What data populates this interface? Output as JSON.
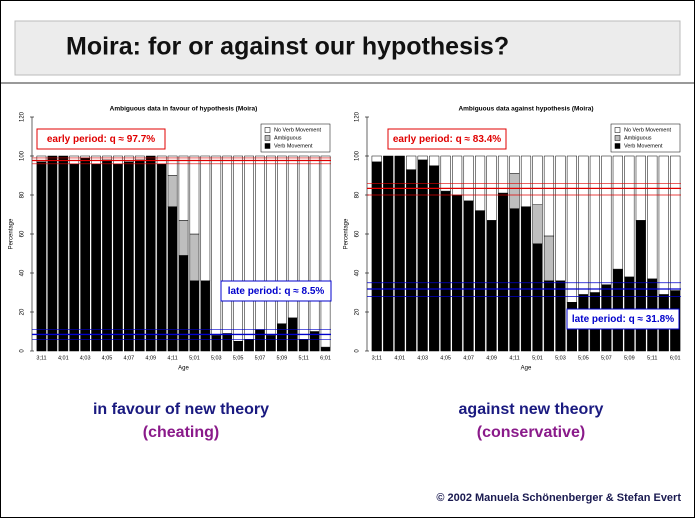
{
  "slide": {
    "title": "Moira: for or against our hypothesis?",
    "captions": [
      {
        "line1": "in favour of new theory",
        "line2": "(cheating)"
      },
      {
        "line1": "against new theory",
        "line2": "(conservative)"
      }
    ],
    "footer": "© 2002  Manuela Schönenberger  & Stefan Evert"
  },
  "chart_data": [
    {
      "type": "stacked-bar",
      "title": "Ambiguous data in favour of hypothesis (Moira)",
      "x_label": "Age",
      "y_label": "Percentage",
      "categories": [
        "3;11",
        null,
        "4;01",
        null,
        "4;03",
        null,
        "4;05",
        null,
        "4;07",
        null,
        "4;09",
        null,
        "4;11",
        null,
        "5;01",
        null,
        "5;03",
        null,
        "5;05",
        null,
        "5;07",
        null,
        "5;09",
        null,
        "5;11",
        null,
        "6;01"
      ],
      "series": [
        {
          "name": "Verb Movement",
          "color": "#000000",
          "values": [
            97,
            100,
            100,
            96,
            99,
            96,
            98,
            96,
            97,
            98,
            100,
            96,
            74,
            49,
            36,
            36,
            8,
            9,
            5,
            6,
            11,
            8,
            14,
            17,
            6,
            10,
            2
          ]
        },
        {
          "name": "Ambiguous",
          "color": "#bebebe",
          "values": [
            0,
            0,
            0,
            0,
            0,
            0,
            0,
            0,
            0,
            0,
            0,
            0,
            16,
            18,
            24,
            0,
            0,
            0,
            0,
            0,
            0,
            0,
            0,
            0,
            0,
            0,
            0
          ]
        },
        {
          "name": "No Verb Movement",
          "color": "#ffffff",
          "values": [
            3,
            0,
            0,
            4,
            1,
            4,
            2,
            4,
            3,
            2,
            0,
            4,
            10,
            33,
            40,
            64,
            92,
            91,
            95,
            94,
            89,
            92,
            86,
            83,
            94,
            90,
            98
          ]
        }
      ],
      "ylim": [
        0,
        120
      ],
      "yticks": [
        0,
        20,
        40,
        60,
        80,
        100,
        120
      ],
      "legend": "top-right",
      "reference_lines": [
        {
          "color": "#e00000",
          "values": [
            96,
            97.7,
            99
          ]
        },
        {
          "color": "#0000cc",
          "values": [
            6,
            8.5,
            11
          ]
        }
      ],
      "annotations": [
        {
          "text": "early period: q ≈ 97.7%",
          "color": "#e00000"
        },
        {
          "text": "late period: q ≈  8.5%",
          "color": "#0000cc"
        }
      ]
    },
    {
      "type": "stacked-bar",
      "title": "Ambiguous data against hypothesis (Moira)",
      "x_label": "Age",
      "y_label": "Percentage",
      "categories": [
        "3;11",
        null,
        "4;01",
        null,
        "4;03",
        null,
        "4;05",
        null,
        "4;07",
        null,
        "4;09",
        null,
        "4;11",
        null,
        "5;01",
        null,
        "5;03",
        null,
        "5;05",
        null,
        "5;07",
        null,
        "5;09",
        null,
        "5;11",
        null,
        "6;01"
      ],
      "series": [
        {
          "name": "Verb Movement",
          "color": "#000000",
          "values": [
            97,
            100,
            100,
            93,
            98,
            95,
            82,
            80,
            77,
            72,
            67,
            81,
            73,
            74,
            55,
            36,
            36,
            25,
            29,
            30,
            34,
            42,
            38,
            67,
            37,
            29,
            31
          ]
        },
        {
          "name": "Ambiguous",
          "color": "#bebebe",
          "values": [
            0,
            0,
            0,
            0,
            0,
            0,
            0,
            0,
            0,
            0,
            0,
            0,
            18,
            0,
            20,
            23,
            0,
            0,
            0,
            0,
            0,
            0,
            0,
            0,
            0,
            0,
            0
          ]
        },
        {
          "name": "No Verb Movement",
          "color": "#ffffff",
          "values": [
            3,
            0,
            0,
            7,
            2,
            5,
            18,
            20,
            23,
            28,
            33,
            19,
            9,
            26,
            25,
            41,
            64,
            75,
            71,
            70,
            66,
            58,
            62,
            33,
            63,
            71,
            69
          ]
        }
      ],
      "ylim": [
        0,
        120
      ],
      "yticks": [
        0,
        20,
        40,
        60,
        80,
        100,
        120
      ],
      "legend": "top-right",
      "reference_lines": [
        {
          "color": "#e00000",
          "values": [
            80,
            83.4,
            86
          ]
        },
        {
          "color": "#0000cc",
          "values": [
            28,
            31.8,
            35
          ]
        }
      ],
      "annotations": [
        {
          "text": "early period: q ≈ 83.4%",
          "color": "#e00000"
        },
        {
          "text": "late period: q ≈ 31.8%",
          "color": "#0000cc"
        }
      ]
    }
  ]
}
